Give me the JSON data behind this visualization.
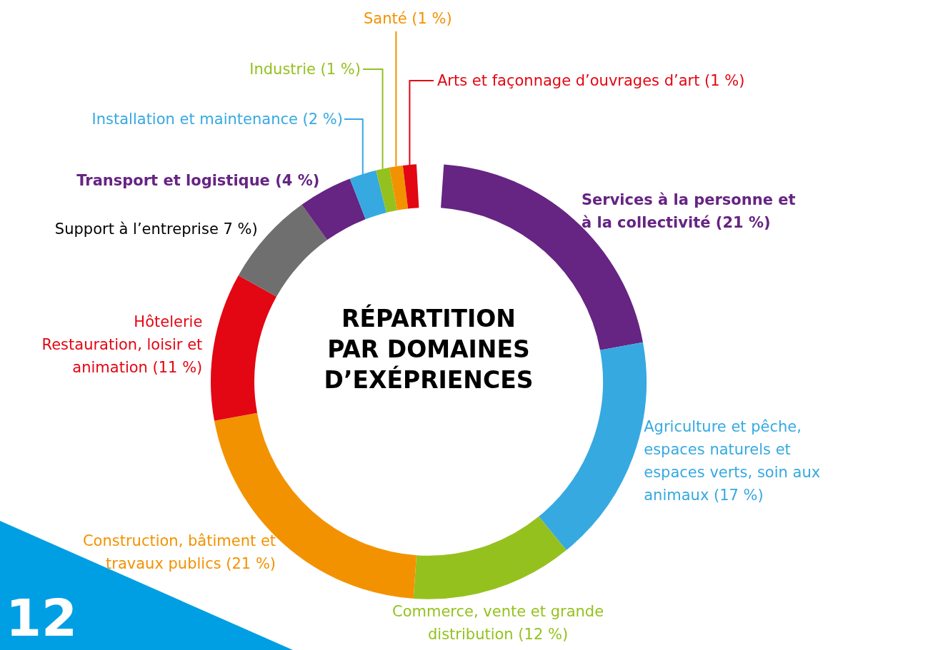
{
  "chart_data": {
    "type": "donut",
    "title": "RÉPARTITION PAR DOMAINES D’EXÉPRIENCES",
    "categories": [
      "Services à la personne et à la collectivité",
      "Agriculture et pêche, espaces naturels et espaces verts, soin aux animaux",
      "Commerce, vente et grande distribution",
      "Construction, bâtiment et travaux publics",
      "Hôtelerie Restauration, loisir et animation",
      "Support à l’entreprise",
      "Transport et logistique",
      "Installation et maintenance",
      "Industrie",
      "Santé",
      "Arts et façonnage d’ouvrages d’art"
    ],
    "values": [
      21,
      17,
      12,
      21,
      11,
      7,
      4,
      2,
      1,
      1,
      1
    ],
    "value_labels": [
      "(21 %)",
      "(17 %)",
      "(12 %)",
      "(21 %)",
      "(11 %)",
      "7 %)",
      "(4 %)",
      "(2 %)",
      "(1 %)",
      "(1 %)",
      "(1 %)"
    ],
    "colors": [
      "#662483",
      "#36a9e1",
      "#95c11f",
      "#f39200",
      "#e30613",
      "#706f6f",
      "#662483",
      "#36a9e1",
      "#95c11f",
      "#f39200",
      "#e30613"
    ],
    "annotations": [
      "12"
    ],
    "legend": false
  }
}
